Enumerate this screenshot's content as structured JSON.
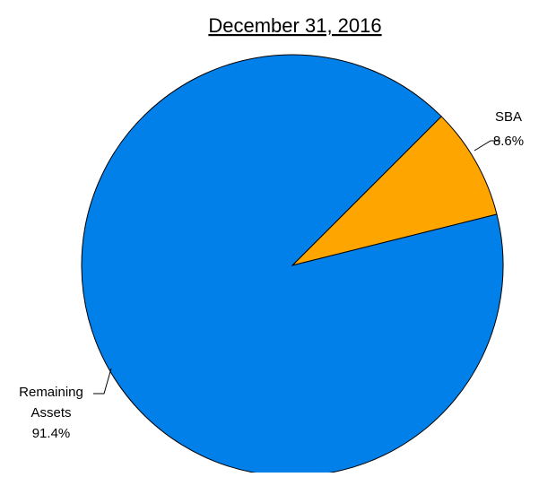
{
  "chart_data": {
    "type": "pie",
    "title": "December 31, 2016",
    "slices": [
      {
        "name": "SBA",
        "value": 8.6,
        "label": "8.6%",
        "color": "#FFA500"
      },
      {
        "name": "Remaining Assets",
        "label_lines": [
          "Remaining",
          "Assets"
        ],
        "value": 91.4,
        "label": "91.4%",
        "color": "#0080E8"
      }
    ],
    "edge_color": "#000000",
    "legend": "none"
  }
}
